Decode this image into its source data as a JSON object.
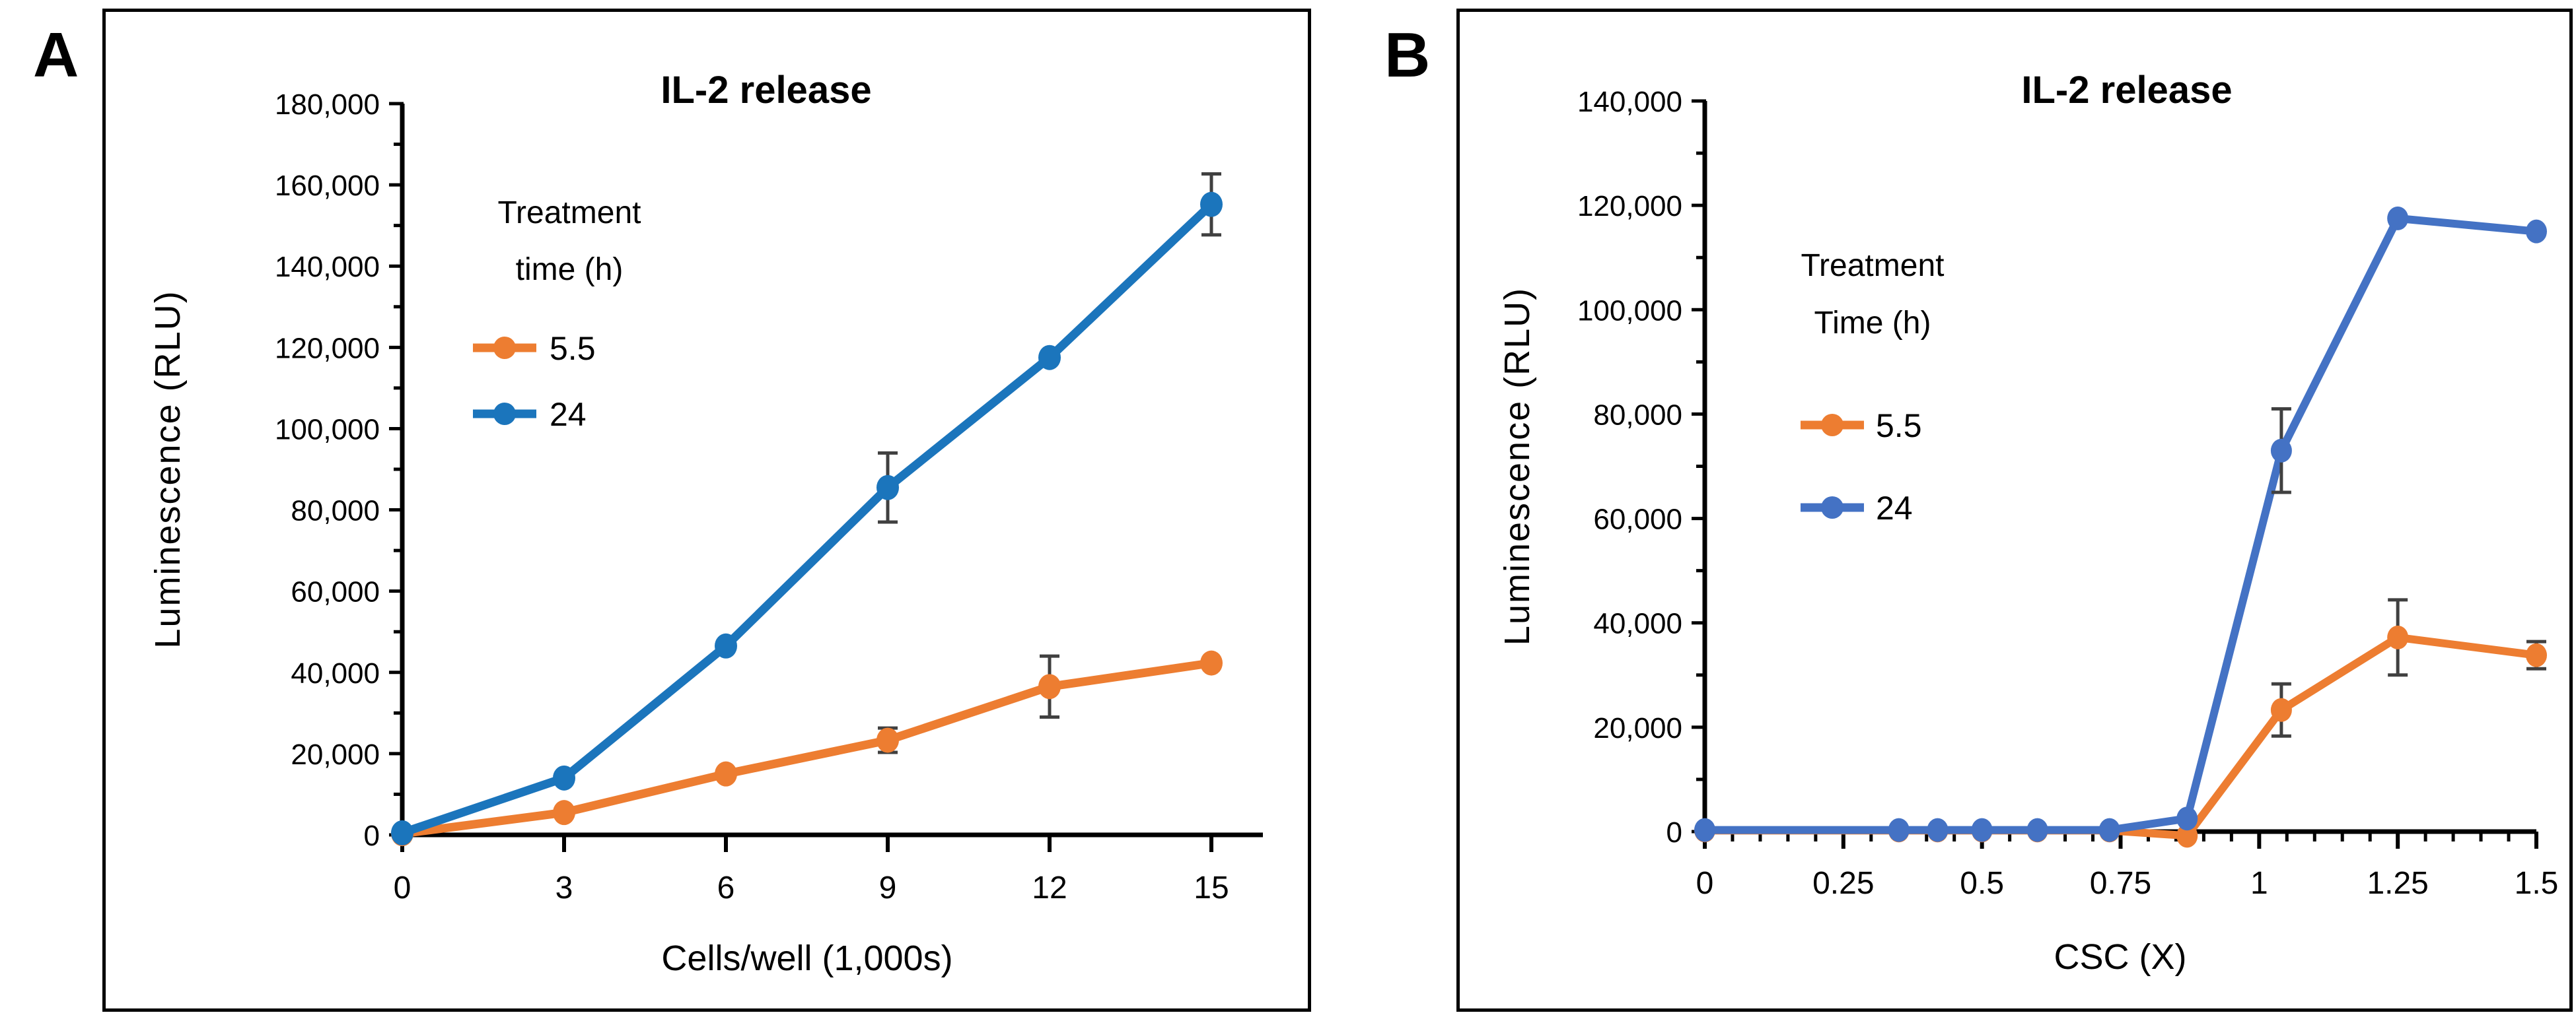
{
  "figure": {
    "background": "#FFFFFF",
    "axis_color": "#000000",
    "error_bar_color": "#404040"
  },
  "chart_data": [
    {
      "type": "line",
      "panel_letter": "A",
      "title": "IL-2 release",
      "xlabel": "Cells/well (1,000s)",
      "ylabel": "Luminescence (RLU)",
      "xlim": [
        0,
        15
      ],
      "ylim": [
        0,
        180000
      ],
      "grid": false,
      "legend_position": "upper-left",
      "legend_title_lines": [
        "Treatment",
        "time (h)"
      ],
      "y_tick_labels": [
        "0",
        "20,000",
        "40,000",
        "60,000",
        "80,000",
        "100,000",
        "120,000",
        "140,000",
        "160,000",
        "180,000"
      ],
      "y_minor_per_major": 2,
      "x_major_ticks": [
        0,
        3,
        6,
        9,
        12,
        15
      ],
      "x_tick_labels": [
        "0",
        "3",
        "6",
        "9",
        "12",
        "15"
      ],
      "x_minor_step": 0,
      "x": [
        0,
        3,
        6,
        9,
        12,
        15
      ],
      "series": [
        {
          "name": "5.5",
          "color": "#ED7D31",
          "values": [
            300,
            5500,
            15000,
            23300,
            36500,
            42300
          ],
          "errors": [
            0,
            0,
            0,
            3000,
            7500,
            0
          ]
        },
        {
          "name": "24",
          "color": "#1B75BC",
          "values": [
            500,
            14000,
            46500,
            85500,
            117500,
            155200
          ],
          "errors": [
            0,
            0,
            0,
            8500,
            0,
            7500
          ]
        }
      ]
    },
    {
      "type": "line",
      "panel_letter": "B",
      "title": "IL-2 release",
      "xlabel": "CSC (X)",
      "ylabel": "Luminescence (RLU)",
      "xlim": [
        0,
        1.5
      ],
      "ylim": [
        0,
        140000
      ],
      "grid": false,
      "legend_position": "upper-left",
      "legend_title_lines": [
        "Treatment",
        "Time (h)"
      ],
      "y_tick_labels": [
        "0",
        "20,000",
        "40,000",
        "60,000",
        "80,000",
        "100,000",
        "120,000",
        "140,000"
      ],
      "y_minor_per_major": 2,
      "x_major_ticks": [
        0,
        0.25,
        0.5,
        0.75,
        1,
        1.25,
        1.5
      ],
      "x_tick_labels": [
        "0",
        "0.25",
        "0.5",
        "0.75",
        "1",
        "1.25",
        "1.5"
      ],
      "x_minor_step": 0.05,
      "x": [
        0,
        0.35,
        0.42,
        0.5,
        0.6,
        0.73,
        0.87,
        1.04,
        1.25,
        1.5
      ],
      "series": [
        {
          "name": "5.5",
          "color": "#ED7D31",
          "values": [
            200,
            200,
            200,
            200,
            200,
            200,
            -800,
            23300,
            37200,
            33800
          ],
          "errors": [
            0,
            0,
            0,
            0,
            0,
            0,
            0,
            5000,
            7200,
            2600
          ]
        },
        {
          "name": "24",
          "color": "#4472C4",
          "values": [
            300,
            300,
            300,
            300,
            300,
            300,
            2500,
            73000,
            117500,
            115000
          ],
          "errors": [
            0,
            0,
            0,
            0,
            0,
            0,
            0,
            8000,
            0,
            0
          ]
        }
      ]
    }
  ]
}
